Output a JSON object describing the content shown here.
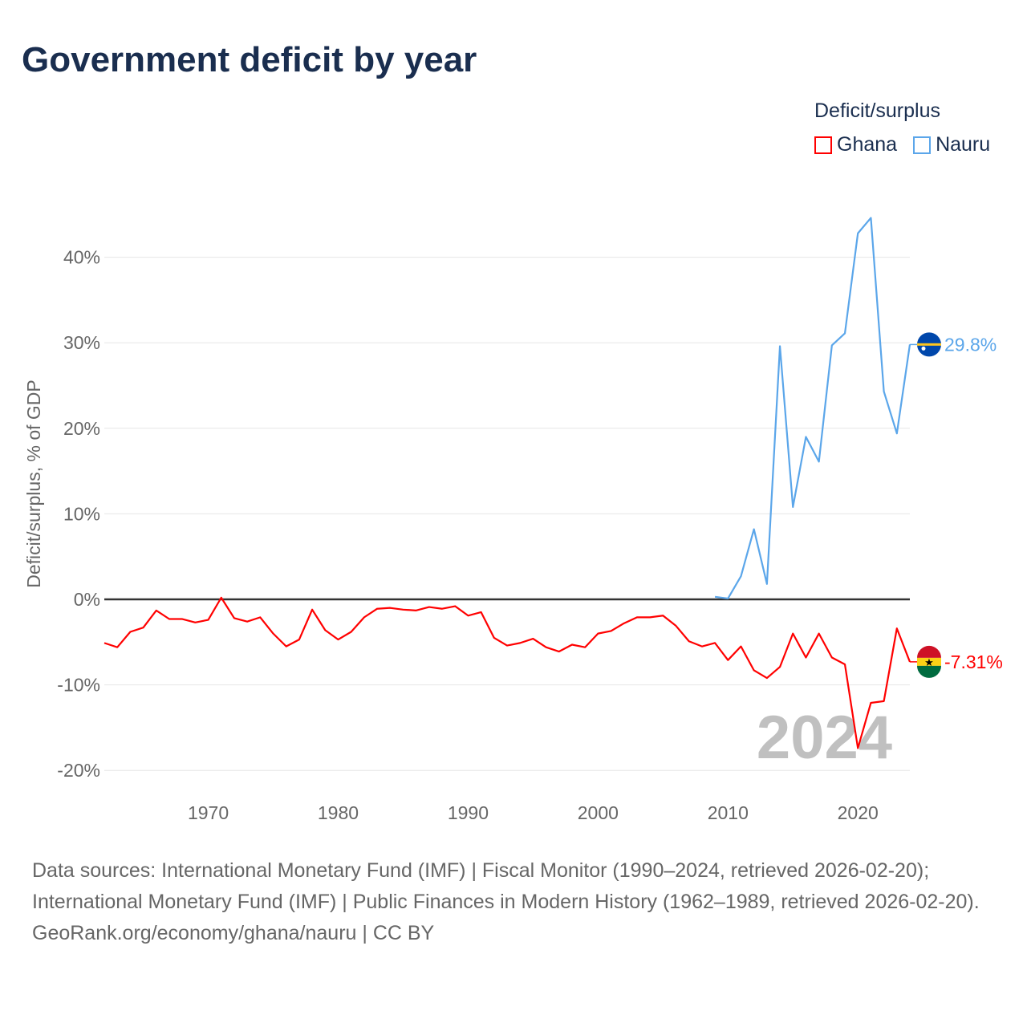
{
  "title": "Government deficit by year",
  "legend": {
    "title": "Deficit/surplus",
    "items": [
      {
        "label": "Ghana",
        "color": "#ff0000"
      },
      {
        "label": "Nauru",
        "color": "#5ba6ea"
      }
    ]
  },
  "footer": {
    "sources": "Data sources: International Monetary Fund (IMF) | Fiscal Monitor (1990–2024, retrieved 2026-02-20); International Monetary Fund (IMF) | Public Finances in Modern History (1962–1989, retrieved 2026-02-20).",
    "credit": "GeoRank.org/economy/ghana/nauru | CC BY"
  },
  "chart_data": {
    "type": "line",
    "title": "Government deficit by year",
    "xlabel": "",
    "ylabel": "Deficit/surplus, % of GDP",
    "xlim": [
      1962,
      2024
    ],
    "ylim": [
      -22,
      47
    ],
    "yticks": [
      {
        "v": 40,
        "label": "40%"
      },
      {
        "v": 30,
        "label": "30%"
      },
      {
        "v": 20,
        "label": "20%"
      },
      {
        "v": 10,
        "label": "10%"
      },
      {
        "v": 0,
        "label": "0%"
      },
      {
        "v": -10,
        "label": "-10%"
      },
      {
        "v": -20,
        "label": "-20%"
      }
    ],
    "xticks": [
      {
        "v": 1970,
        "label": "1970"
      },
      {
        "v": 1980,
        "label": "1980"
      },
      {
        "v": 1990,
        "label": "1990"
      },
      {
        "v": 2000,
        "label": "2000"
      },
      {
        "v": 2010,
        "label": "2010"
      },
      {
        "v": 2020,
        "label": "2020"
      }
    ],
    "grid": true,
    "year_watermark": "2024",
    "series": [
      {
        "name": "Ghana",
        "color": "#ff0000",
        "end_label": "-7.31%",
        "start_year": 1962,
        "values": [
          -5.1,
          -5.6,
          -3.8,
          -3.3,
          -1.3,
          -2.3,
          -2.3,
          -2.7,
          -2.4,
          0.2,
          -2.2,
          -2.6,
          -2.1,
          -4.0,
          -5.5,
          -4.7,
          -1.2,
          -3.6,
          -4.7,
          -3.8,
          -2.1,
          -1.1,
          -1.0,
          -1.2,
          -1.3,
          -0.9,
          -1.1,
          -0.8,
          -1.9,
          -1.5,
          -4.5,
          -5.4,
          -5.1,
          -4.6,
          -5.6,
          -6.1,
          -5.3,
          -5.6,
          -4.0,
          -3.7,
          -2.8,
          -2.1,
          -2.1,
          -1.9,
          -3.1,
          -4.9,
          -5.5,
          -5.1,
          -7.1,
          -5.5,
          -8.3,
          -9.2,
          -7.9,
          -4.0,
          -6.8,
          -4.0,
          -6.8,
          -7.6,
          -17.4,
          -12.1,
          -11.9,
          -3.4,
          -7.31
        ]
      },
      {
        "name": "Nauru",
        "color": "#5ba6ea",
        "end_label": "29.8%",
        "start_year": 2009,
        "values": [
          0.3,
          0.1,
          2.7,
          8.2,
          1.8,
          29.6,
          10.8,
          19.0,
          16.1,
          29.7,
          31.1,
          42.8,
          44.6,
          24.3,
          19.4,
          29.8
        ]
      }
    ]
  }
}
